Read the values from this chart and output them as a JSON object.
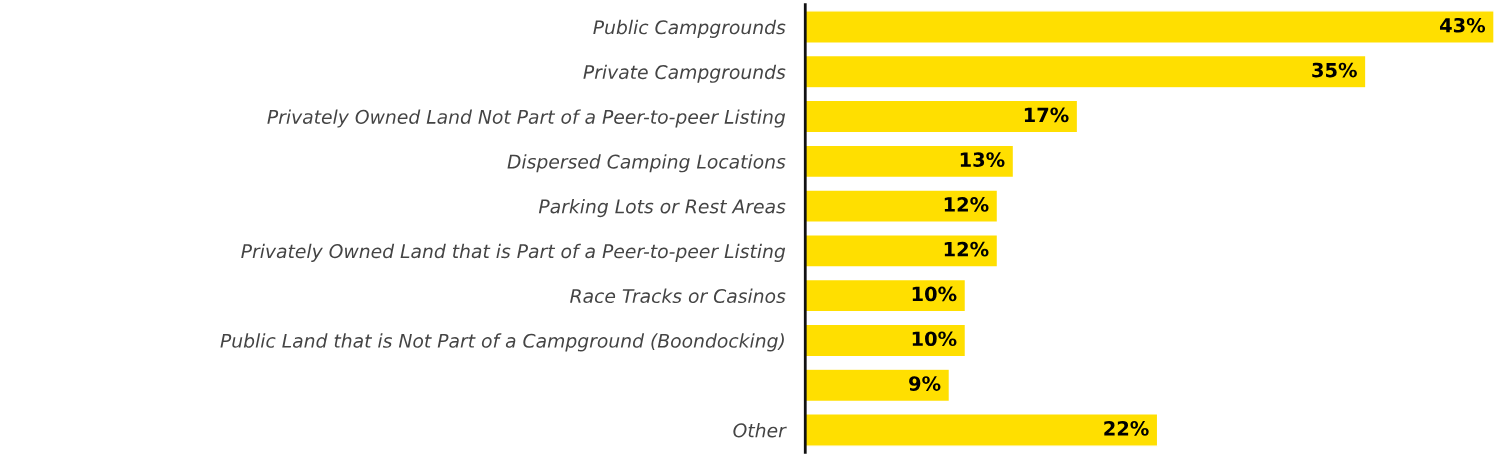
{
  "chart_data": {
    "type": "bar",
    "orientation": "horizontal",
    "categories": [
      "Public Campgrounds",
      "Private Campgrounds",
      "Privately Owned Land Not Part of a Peer-to-peer Listing",
      "Dispersed Camping Locations",
      "Parking Lots or Rest Areas",
      "Privately Owned Land that is Part of a Peer-to-peer Listing",
      "Race Tracks or Casinos",
      "Public Land that is Not Part of a Campground (Boondocking)",
      null,
      "Other"
    ],
    "values": [
      43,
      35,
      17,
      13,
      12,
      12,
      10,
      10,
      9,
      22
    ],
    "value_labels": [
      "43%",
      "35%",
      "17%",
      "13%",
      "12%",
      "12%",
      "10%",
      "10%",
      "9%",
      "22%"
    ],
    "color": "#ffdf00",
    "grid": false,
    "legend": false
  }
}
